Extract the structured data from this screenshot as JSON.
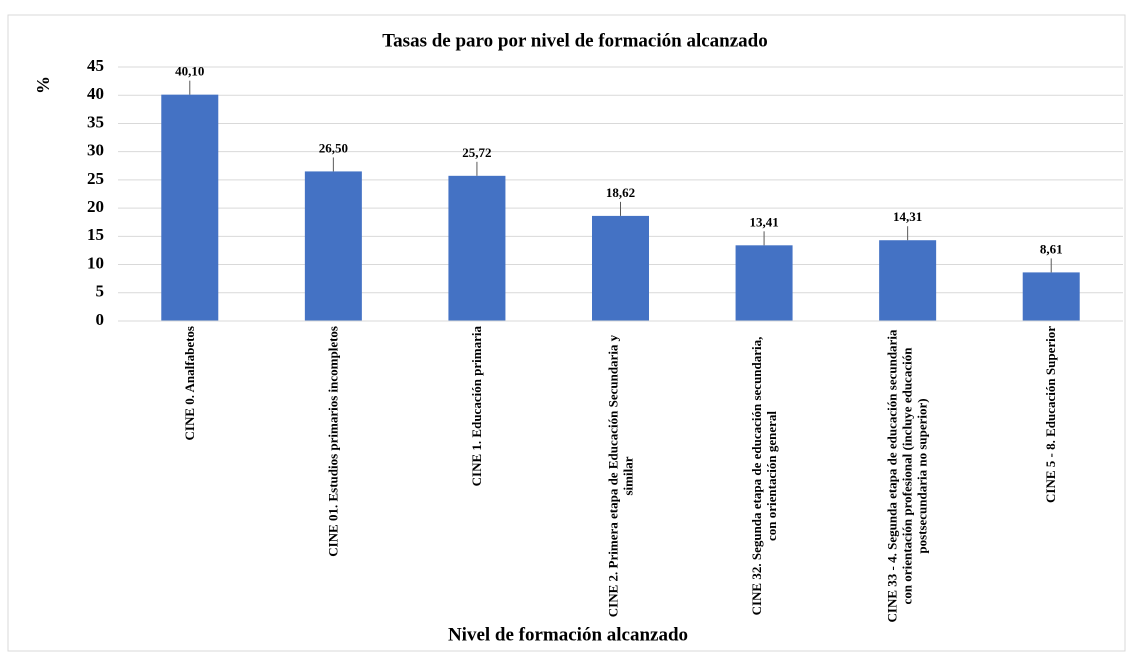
{
  "chart_data": {
    "type": "bar",
    "title": "Tasas de paro por nivel de formación alcanzado",
    "x_label": "Nivel de formación alcanzado",
    "y_label": "%",
    "categories": [
      "CINE 0.  Analfabetos",
      "CINE 01.  Estudios primarios incompletos",
      "CINE 1. Educación primaria",
      "CINE 2. Primera etapa de Educación Secundaria y similar",
      "CINE 32. Segunda etapa de educación secundaria, con orientación general",
      "CINE 33 - 4. Segunda etapa de educación secundaria con orientación profesional (incluye educación postsecundaria no superior)",
      "CINE 5 - 8. Educación Superior"
    ],
    "values": [
      40.1,
      26.5,
      25.72,
      18.62,
      13.41,
      14.31,
      8.61
    ],
    "value_labels": [
      "40,10",
      "26,50",
      "25,72",
      "18,62",
      "13,41",
      "14,31",
      "8,61"
    ],
    "color": "#4472c4",
    "ylim": [
      0,
      45
    ],
    "yticks": [
      0,
      5,
      10,
      15,
      20,
      25,
      30,
      35,
      40,
      45
    ],
    "grid": true
  }
}
